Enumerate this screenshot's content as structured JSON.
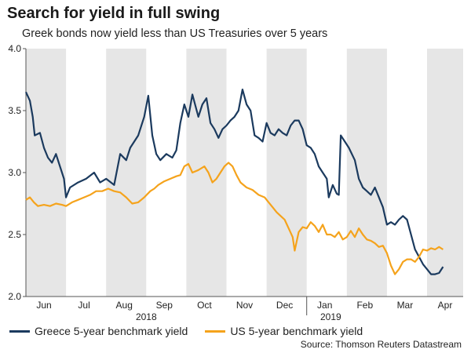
{
  "title": "Search for yield in full swing",
  "subtitle": "Greek bonds now yield less than US Treasuries over 5 years",
  "source": "Source: Thomson Reuters Datastream",
  "colors": {
    "greece": "#1b3a5e",
    "us": "#f5a31c",
    "band": "#e6e6e6"
  },
  "chart_data": {
    "type": "line",
    "title": "Search for yield in full swing",
    "subtitle": "Greek bonds now yield less than US Treasuries over 5 years",
    "xlabel": "",
    "ylabel": "",
    "ylim": [
      2.0,
      4.0
    ],
    "yticks": [
      "4.0",
      "3.5",
      "3.0",
      "2.5",
      "2.0"
    ],
    "months": [
      "Jun",
      "Jul",
      "Aug",
      "Sep",
      "Oct",
      "Nov",
      "Dec",
      "Jan",
      "Feb",
      "Mar",
      "Apr"
    ],
    "years": [
      "2018",
      "2019"
    ],
    "x_unit": "months since start of June 2018",
    "xlim": [
      0,
      10.9
    ],
    "series": [
      {
        "name": "Greece 5-year benchmark yield",
        "color": "#1b3a5e",
        "points": [
          [
            0.0,
            3.65
          ],
          [
            0.1,
            3.58
          ],
          [
            0.17,
            3.45
          ],
          [
            0.22,
            3.3
          ],
          [
            0.35,
            3.32
          ],
          [
            0.45,
            3.2
          ],
          [
            0.55,
            3.12
          ],
          [
            0.65,
            3.08
          ],
          [
            0.75,
            3.15
          ],
          [
            0.85,
            3.05
          ],
          [
            0.95,
            2.95
          ],
          [
            1.0,
            2.8
          ],
          [
            1.1,
            2.88
          ],
          [
            1.3,
            2.92
          ],
          [
            1.5,
            2.95
          ],
          [
            1.7,
            3.0
          ],
          [
            1.85,
            2.92
          ],
          [
            2.0,
            2.95
          ],
          [
            2.2,
            2.9
          ],
          [
            2.35,
            3.15
          ],
          [
            2.5,
            3.1
          ],
          [
            2.6,
            3.2
          ],
          [
            2.8,
            3.3
          ],
          [
            2.95,
            3.45
          ],
          [
            3.05,
            3.62
          ],
          [
            3.15,
            3.3
          ],
          [
            3.25,
            3.15
          ],
          [
            3.35,
            3.1
          ],
          [
            3.5,
            3.15
          ],
          [
            3.65,
            3.12
          ],
          [
            3.75,
            3.18
          ],
          [
            3.85,
            3.4
          ],
          [
            3.95,
            3.55
          ],
          [
            4.05,
            3.45
          ],
          [
            4.15,
            3.63
          ],
          [
            4.3,
            3.45
          ],
          [
            4.4,
            3.55
          ],
          [
            4.5,
            3.6
          ],
          [
            4.6,
            3.4
          ],
          [
            4.7,
            3.35
          ],
          [
            4.8,
            3.28
          ],
          [
            4.9,
            3.35
          ],
          [
            5.0,
            3.38
          ],
          [
            5.1,
            3.42
          ],
          [
            5.2,
            3.45
          ],
          [
            5.3,
            3.5
          ],
          [
            5.4,
            3.67
          ],
          [
            5.5,
            3.55
          ],
          [
            5.6,
            3.5
          ],
          [
            5.7,
            3.3
          ],
          [
            5.8,
            3.28
          ],
          [
            5.9,
            3.25
          ],
          [
            6.0,
            3.4
          ],
          [
            6.1,
            3.32
          ],
          [
            6.2,
            3.3
          ],
          [
            6.3,
            3.35
          ],
          [
            6.4,
            3.32
          ],
          [
            6.5,
            3.3
          ],
          [
            6.6,
            3.38
          ],
          [
            6.7,
            3.42
          ],
          [
            6.8,
            3.42
          ],
          [
            6.9,
            3.35
          ],
          [
            7.0,
            3.22
          ],
          [
            7.1,
            3.2
          ],
          [
            7.2,
            3.15
          ],
          [
            7.3,
            3.05
          ],
          [
            7.4,
            3.0
          ],
          [
            7.5,
            2.95
          ],
          [
            7.55,
            2.8
          ],
          [
            7.65,
            2.9
          ],
          [
            7.75,
            2.83
          ],
          [
            7.8,
            2.82
          ],
          [
            7.85,
            3.3
          ],
          [
            7.95,
            3.25
          ],
          [
            8.05,
            3.2
          ],
          [
            8.2,
            3.1
          ],
          [
            8.3,
            2.95
          ],
          [
            8.4,
            2.88
          ],
          [
            8.5,
            2.85
          ],
          [
            8.6,
            2.82
          ],
          [
            8.7,
            2.88
          ],
          [
            8.8,
            2.8
          ],
          [
            8.9,
            2.72
          ],
          [
            9.0,
            2.58
          ],
          [
            9.1,
            2.6
          ],
          [
            9.2,
            2.58
          ],
          [
            9.3,
            2.62
          ],
          [
            9.4,
            2.65
          ],
          [
            9.5,
            2.62
          ],
          [
            9.6,
            2.5
          ],
          [
            9.7,
            2.38
          ],
          [
            9.8,
            2.32
          ],
          [
            9.9,
            2.26
          ],
          [
            10.0,
            2.22
          ],
          [
            10.1,
            2.18
          ],
          [
            10.2,
            2.18
          ],
          [
            10.3,
            2.19
          ],
          [
            10.4,
            2.24
          ]
        ]
      },
      {
        "name": "US 5-year benchmark yield",
        "color": "#f5a31c",
        "points": [
          [
            0.0,
            2.78
          ],
          [
            0.1,
            2.8
          ],
          [
            0.2,
            2.76
          ],
          [
            0.3,
            2.73
          ],
          [
            0.45,
            2.74
          ],
          [
            0.6,
            2.73
          ],
          [
            0.75,
            2.75
          ],
          [
            0.9,
            2.74
          ],
          [
            1.0,
            2.73
          ],
          [
            1.15,
            2.76
          ],
          [
            1.3,
            2.78
          ],
          [
            1.45,
            2.8
          ],
          [
            1.6,
            2.82
          ],
          [
            1.75,
            2.85
          ],
          [
            1.9,
            2.85
          ],
          [
            2.05,
            2.87
          ],
          [
            2.2,
            2.85
          ],
          [
            2.35,
            2.84
          ],
          [
            2.5,
            2.8
          ],
          [
            2.65,
            2.75
          ],
          [
            2.8,
            2.76
          ],
          [
            2.95,
            2.8
          ],
          [
            3.1,
            2.85
          ],
          [
            3.2,
            2.87
          ],
          [
            3.3,
            2.9
          ],
          [
            3.45,
            2.93
          ],
          [
            3.6,
            2.95
          ],
          [
            3.75,
            2.97
          ],
          [
            3.85,
            2.98
          ],
          [
            3.95,
            3.05
          ],
          [
            4.05,
            3.07
          ],
          [
            4.15,
            3.0
          ],
          [
            4.3,
            3.02
          ],
          [
            4.45,
            3.05
          ],
          [
            4.55,
            3.0
          ],
          [
            4.65,
            2.92
          ],
          [
            4.75,
            2.95
          ],
          [
            4.85,
            3.0
          ],
          [
            4.95,
            3.05
          ],
          [
            5.05,
            3.08
          ],
          [
            5.15,
            3.05
          ],
          [
            5.25,
            2.98
          ],
          [
            5.35,
            2.92
          ],
          [
            5.5,
            2.88
          ],
          [
            5.65,
            2.86
          ],
          [
            5.8,
            2.82
          ],
          [
            5.95,
            2.8
          ],
          [
            6.05,
            2.76
          ],
          [
            6.15,
            2.72
          ],
          [
            6.25,
            2.68
          ],
          [
            6.35,
            2.65
          ],
          [
            6.45,
            2.62
          ],
          [
            6.55,
            2.55
          ],
          [
            6.65,
            2.48
          ],
          [
            6.7,
            2.37
          ],
          [
            6.8,
            2.52
          ],
          [
            6.9,
            2.56
          ],
          [
            7.0,
            2.55
          ],
          [
            7.1,
            2.6
          ],
          [
            7.2,
            2.57
          ],
          [
            7.3,
            2.52
          ],
          [
            7.4,
            2.58
          ],
          [
            7.5,
            2.5
          ],
          [
            7.6,
            2.5
          ],
          [
            7.7,
            2.48
          ],
          [
            7.8,
            2.52
          ],
          [
            7.9,
            2.46
          ],
          [
            8.0,
            2.48
          ],
          [
            8.1,
            2.53
          ],
          [
            8.2,
            2.48
          ],
          [
            8.3,
            2.55
          ],
          [
            8.4,
            2.5
          ],
          [
            8.5,
            2.46
          ],
          [
            8.6,
            2.45
          ],
          [
            8.7,
            2.43
          ],
          [
            8.8,
            2.4
          ],
          [
            8.9,
            2.41
          ],
          [
            9.0,
            2.35
          ],
          [
            9.1,
            2.25
          ],
          [
            9.2,
            2.18
          ],
          [
            9.3,
            2.22
          ],
          [
            9.4,
            2.28
          ],
          [
            9.5,
            2.3
          ],
          [
            9.6,
            2.3
          ],
          [
            9.7,
            2.28
          ],
          [
            9.8,
            2.32
          ],
          [
            9.9,
            2.38
          ],
          [
            10.0,
            2.37
          ],
          [
            10.1,
            2.39
          ],
          [
            10.2,
            2.38
          ],
          [
            10.3,
            2.4
          ],
          [
            10.4,
            2.38
          ]
        ]
      }
    ]
  }
}
